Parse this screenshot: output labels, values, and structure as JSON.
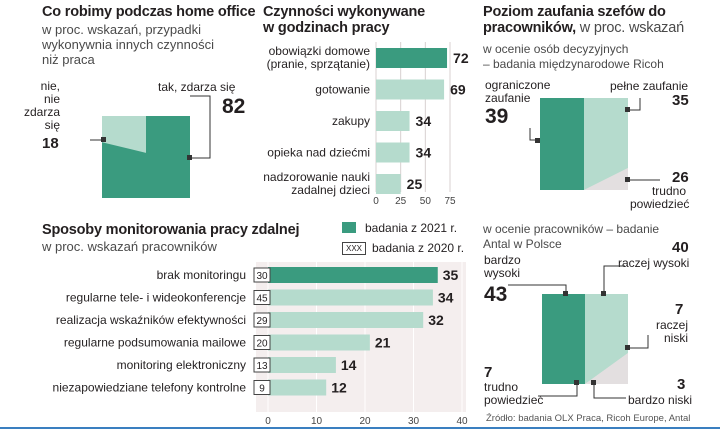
{
  "colors": {
    "dark": "#3a9b7f",
    "light": "#b5dbcd",
    "grey": "#e3dfe0",
    "bg": "#f4eeee",
    "line": "#333333"
  },
  "home_office": {
    "title": "Co robimy podczas home office",
    "subtitle": [
      "w proc. wskazań, przypadki",
      "wykonywnia innych czynności",
      "niż praca"
    ],
    "no_label": [
      "nie,",
      "nie",
      "zdarza",
      "się"
    ],
    "no_value": "18",
    "yes_label": "tak, zdarza się",
    "yes_value": "82"
  },
  "activities": {
    "title": [
      "Czynności wykonywane",
      "w godzinach pracy"
    ]
  },
  "trust": {
    "title_bold": "Poziom zaufania szefów do",
    "title_bold2": "pracowników,",
    "title_rest": " w proc. wskazań",
    "subtitle": [
      "w ocenie osób decyzyjnych",
      "– badania międzynarodowe Ricoh"
    ],
    "limited_label": [
      "ograniczone",
      "zaufanie"
    ],
    "limited_value": "39",
    "full_label": "pełne zaufanie",
    "full_value": "35",
    "hard_label": [
      "trudno",
      "powiedzieć"
    ],
    "hard_value": "26"
  },
  "employees": {
    "subtitle": [
      "w ocenie pracowników – badanie",
      "Antal w Polsce"
    ],
    "very_high_label": [
      "bardzo",
      "wysoki"
    ],
    "very_high_value": "43",
    "rather_high_label": "raczej wysoki",
    "rather_high_value": "40",
    "rather_low_label": [
      "raczej",
      "niski"
    ],
    "rather_low_value": "7",
    "hard_label": [
      "trudno",
      "powiedzieć"
    ],
    "hard_value": "7",
    "very_low_label": "bardzo niski",
    "very_low_value": "3"
  },
  "monitoring": {
    "title": "Sposoby monitorowania pracy zdalnej",
    "subtitle": "w proc. wskazań pracowników",
    "legend_2021": "badania z 2021 r.",
    "legend_2020": "badania z 2020 r.",
    "legend_2020_marker": "XXX"
  },
  "source": "Źródło: badania  OLX Praca, Ricoh Europe, Antal",
  "chart_data": [
    {
      "type": "pie",
      "title": "Co robimy podczas home office",
      "categories": [
        "tak, zdarza się",
        "nie, nie zdarza się"
      ],
      "values": [
        82,
        18
      ]
    },
    {
      "type": "bar",
      "title": "Czynności wykonywane w godzinach pracy",
      "categories": [
        [
          "obowiązki domowe",
          "(pranie, sprzątanie)"
        ],
        [
          "gotowanie"
        ],
        [
          "zakupy"
        ],
        [
          "opieka nad dziećmi"
        ],
        [
          "nadzorowanie nauki",
          "zadalnej dzieci"
        ]
      ],
      "values": [
        72,
        69,
        34,
        34,
        25
      ],
      "xticks": [
        0,
        25,
        50,
        75
      ],
      "xlim": [
        0,
        75
      ]
    },
    {
      "type": "pie",
      "title": "Poziom zaufania szefów do pracowników – Ricoh",
      "categories": [
        "ograniczone zaufanie",
        "pełne zaufanie",
        "trudno powiedzieć"
      ],
      "values": [
        39,
        35,
        26
      ]
    },
    {
      "type": "bar",
      "title": "Sposoby monitorowania pracy zdalnej",
      "categories": [
        "brak monitoringu",
        "regularne tele- i wideokonferencje",
        "realizacja wskaźników efektywności",
        "regularne podsumowania mailowe",
        "monitoring elektroniczny",
        "niezapowiedziane telefony kontrolne"
      ],
      "series": [
        {
          "name": "badania z 2021 r.",
          "values": [
            35,
            34,
            32,
            21,
            14,
            12
          ]
        },
        {
          "name": "badania z 2020 r.",
          "values": [
            30,
            45,
            29,
            20,
            13,
            9
          ]
        }
      ],
      "xticks": [
        0,
        10,
        20,
        30,
        40
      ],
      "xlim": [
        0,
        40
      ]
    },
    {
      "type": "pie",
      "title": "Poziom zaufania – w ocenie pracowników (Antal)",
      "categories": [
        "bardzo wysoki",
        "raczej wysoki",
        "raczej niski",
        "bardzo niski",
        "trudno powiedzieć"
      ],
      "values": [
        43,
        40,
        7,
        3,
        7
      ]
    }
  ]
}
